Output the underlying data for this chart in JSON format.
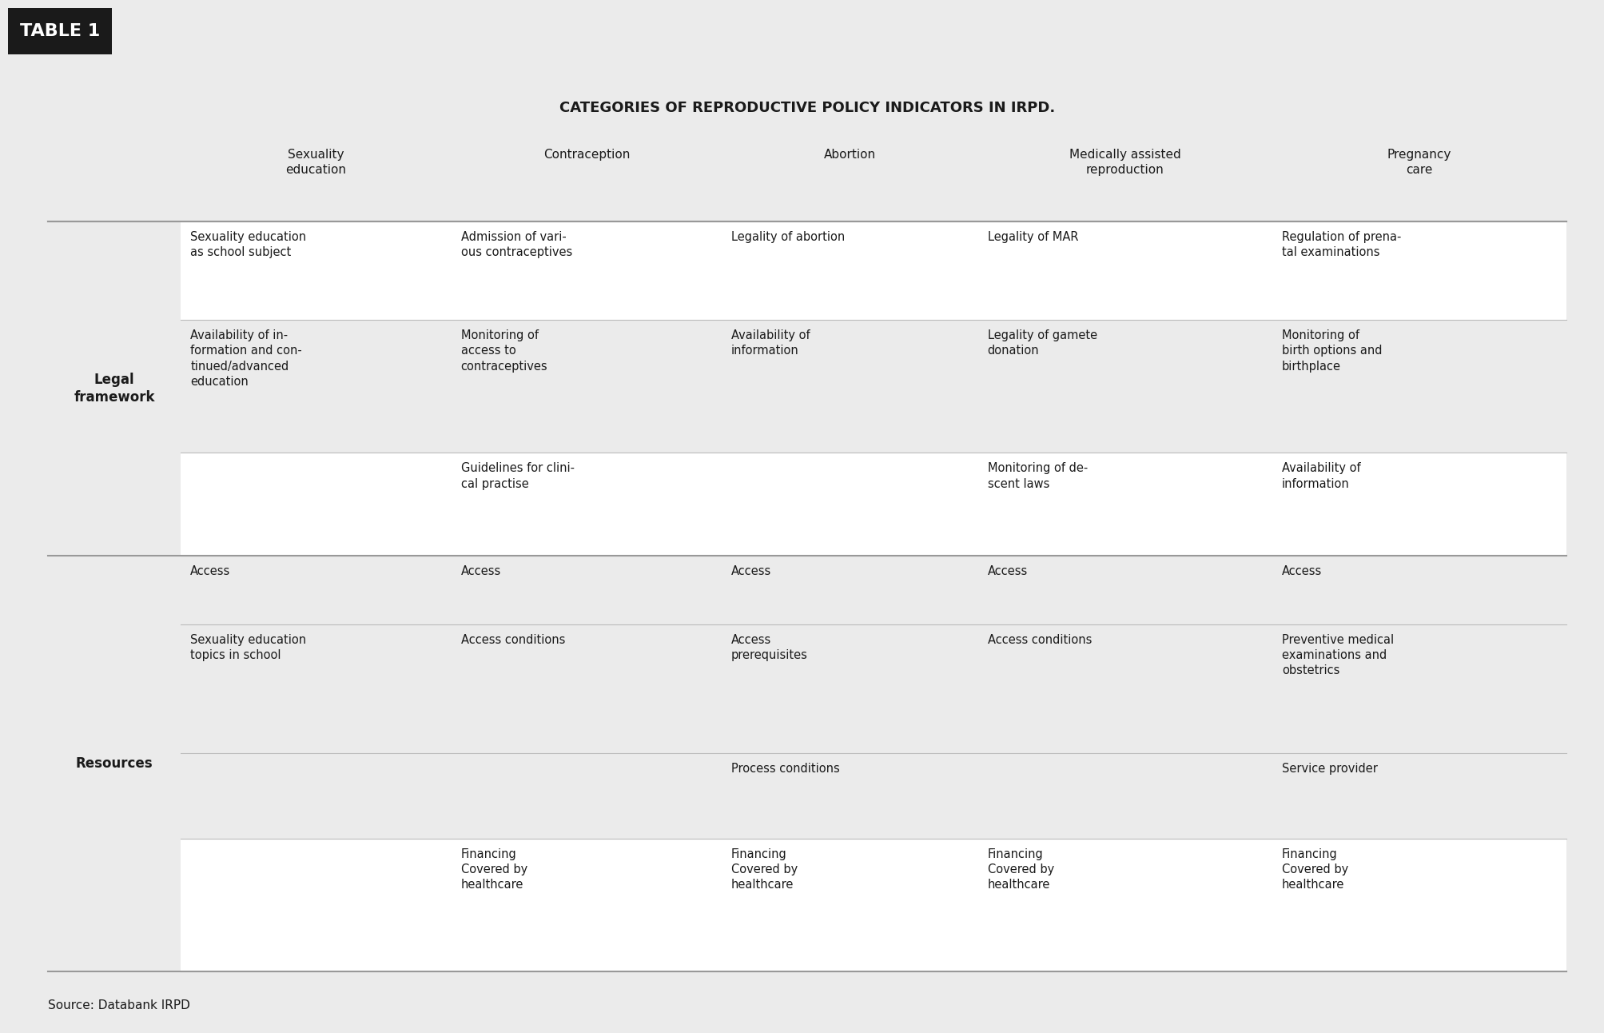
{
  "title": "CATEGORIES OF REPRODUCTIVE POLICY INDICATORS IN IRPD.",
  "source": "Source: Databank IRPD",
  "table_label": "TABLE 1",
  "bg_color": "#EBEBEB",
  "white_color": "#FFFFFF",
  "black_color": "#1A1A1A",
  "line_color": "#BBBBBB",
  "strong_line_color": "#999999",
  "col_headers": [
    "Sexuality\neducation",
    "Contraception",
    "Abortion",
    "Medically assisted\nreproduction",
    "Pregnancy\ncare"
  ],
  "figsize": [
    20.08,
    12.92
  ],
  "dpi": 100,
  "title_fontsize": 13,
  "header_fontsize": 11,
  "cell_fontsize": 10.5,
  "row_header_fontsize": 12
}
